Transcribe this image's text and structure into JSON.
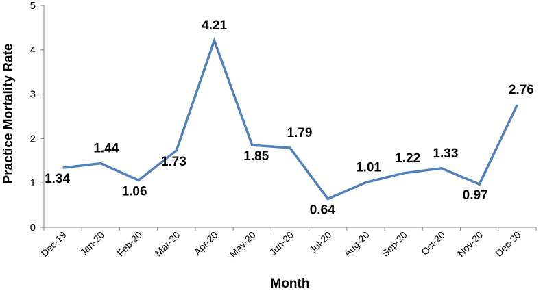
{
  "chart_data": {
    "type": "line",
    "title": "",
    "xlabel": "Month",
    "ylabel": "Practice Mortality Rate",
    "ylim": [
      0,
      5
    ],
    "yticks": [
      "0",
      "1",
      "2",
      "3",
      "4",
      "5"
    ],
    "categories": [
      "Dec-19",
      "Jan-20",
      "Feb-20",
      "Mar-20",
      "Apr-20",
      "May-20",
      "Jun-20",
      "Jul-20",
      "Aug-20",
      "Sep-20",
      "Oct-20",
      "Nov-20",
      "Dec-20"
    ],
    "series": [
      {
        "values": [
          1.34,
          1.44,
          1.06,
          1.73,
          4.21,
          1.85,
          1.79,
          0.64,
          1.01,
          1.22,
          1.33,
          0.97,
          2.76
        ],
        "labels": [
          "1.34",
          "1.44",
          "1.06",
          "1.73",
          "4.21",
          "1.85",
          "1.79",
          "0.64",
          "1.01",
          "1.22",
          "1.33",
          "0.97",
          "2.76"
        ],
        "color": "#4F81BD"
      }
    ],
    "grid": false,
    "legend": "none"
  }
}
